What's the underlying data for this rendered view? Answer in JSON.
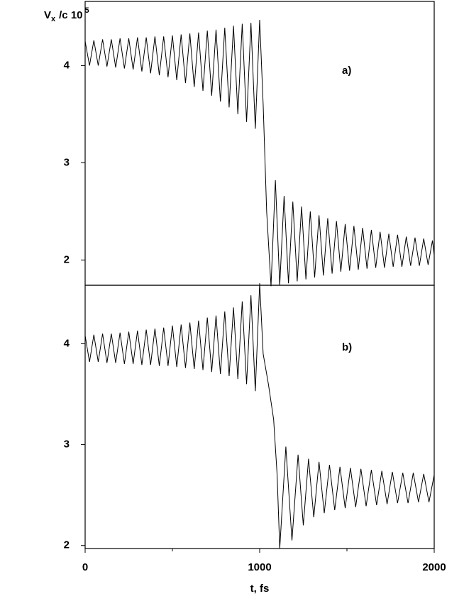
{
  "chart_data": [
    {
      "type": "line",
      "annotation": "a)",
      "y_label": {
        "main": "V",
        "sub": "x",
        "rest": "/c 10",
        "sup": "5"
      },
      "xlim": [
        0,
        2000
      ],
      "ylim": [
        1.74,
        4.66
      ],
      "yticks": [
        2,
        3,
        4
      ],
      "series": [
        {
          "color": "#000000",
          "x": [
            0,
            25,
            50,
            75,
            100,
            125,
            150,
            175,
            200,
            225,
            250,
            275,
            300,
            325,
            350,
            375,
            400,
            425,
            450,
            475,
            500,
            525,
            550,
            575,
            600,
            625,
            650,
            675,
            700,
            725,
            750,
            775,
            800,
            825,
            850,
            875,
            900,
            925,
            950,
            975,
            1000,
            1020,
            1040,
            1065,
            1090,
            1115,
            1140,
            1165,
            1190,
            1215,
            1240,
            1265,
            1290,
            1315,
            1340,
            1365,
            1390,
            1415,
            1440,
            1465,
            1490,
            1515,
            1540,
            1565,
            1590,
            1615,
            1640,
            1665,
            1690,
            1715,
            1740,
            1765,
            1790,
            1815,
            1840,
            1865,
            1890,
            1915,
            1940,
            1965,
            1990,
            2000
          ],
          "values": [
            4.25,
            4.0,
            4.26,
            4.0,
            4.27,
            3.99,
            4.27,
            3.98,
            4.28,
            3.97,
            4.28,
            3.96,
            4.29,
            3.94,
            4.29,
            3.92,
            4.3,
            3.9,
            4.3,
            3.88,
            4.31,
            3.85,
            4.32,
            3.82,
            4.33,
            3.78,
            4.34,
            3.74,
            4.36,
            3.69,
            4.37,
            3.63,
            4.39,
            3.57,
            4.41,
            3.5,
            4.43,
            3.42,
            4.44,
            3.35,
            4.47,
            3.6,
            2.5,
            1.73,
            2.82,
            1.74,
            2.66,
            1.76,
            2.6,
            1.78,
            2.55,
            1.8,
            2.5,
            1.82,
            2.46,
            1.84,
            2.43,
            1.86,
            2.4,
            1.88,
            2.37,
            1.89,
            2.35,
            1.9,
            2.33,
            1.91,
            2.31,
            1.92,
            2.29,
            1.92,
            2.27,
            1.93,
            2.26,
            1.93,
            2.24,
            1.94,
            2.23,
            1.94,
            2.22,
            1.95,
            2.2,
            2.05
          ]
        }
      ]
    },
    {
      "type": "line",
      "annotation": "b)",
      "x_label": "t, fs",
      "xlim": [
        0,
        2000
      ],
      "ylim": [
        1.97,
        4.58
      ],
      "xticks": [
        0,
        1000,
        2000
      ],
      "xminorticks": [
        500,
        1500
      ],
      "yticks": [
        2,
        3,
        4
      ],
      "series": [
        {
          "color": "#000000",
          "x": [
            0,
            25,
            50,
            75,
            100,
            125,
            150,
            175,
            200,
            225,
            250,
            275,
            300,
            325,
            350,
            375,
            400,
            425,
            450,
            475,
            500,
            525,
            550,
            575,
            600,
            625,
            650,
            675,
            700,
            725,
            750,
            775,
            800,
            825,
            850,
            875,
            900,
            925,
            950,
            975,
            1000,
            1020,
            1050,
            1080,
            1100,
            1115,
            1150,
            1185,
            1220,
            1250,
            1280,
            1310,
            1340,
            1370,
            1400,
            1430,
            1460,
            1490,
            1520,
            1550,
            1580,
            1610,
            1640,
            1670,
            1700,
            1730,
            1760,
            1790,
            1820,
            1850,
            1880,
            1910,
            1940,
            1970,
            2000
          ],
          "values": [
            4.08,
            3.82,
            4.09,
            3.82,
            4.1,
            3.81,
            4.1,
            3.81,
            4.11,
            3.8,
            4.12,
            3.8,
            4.13,
            3.79,
            4.14,
            3.79,
            4.15,
            3.78,
            4.16,
            3.78,
            4.18,
            3.77,
            4.19,
            3.76,
            4.21,
            3.75,
            4.23,
            3.74,
            4.26,
            3.72,
            4.28,
            3.7,
            4.32,
            3.68,
            4.36,
            3.65,
            4.42,
            3.6,
            4.48,
            3.53,
            4.6,
            3.9,
            3.6,
            3.25,
            2.7,
            1.97,
            2.98,
            2.05,
            2.9,
            2.2,
            2.86,
            2.28,
            2.83,
            2.32,
            2.8,
            2.35,
            2.78,
            2.37,
            2.77,
            2.38,
            2.76,
            2.39,
            2.75,
            2.4,
            2.74,
            2.41,
            2.73,
            2.42,
            2.72,
            2.42,
            2.72,
            2.43,
            2.71,
            2.43,
            2.7
          ]
        }
      ]
    }
  ]
}
